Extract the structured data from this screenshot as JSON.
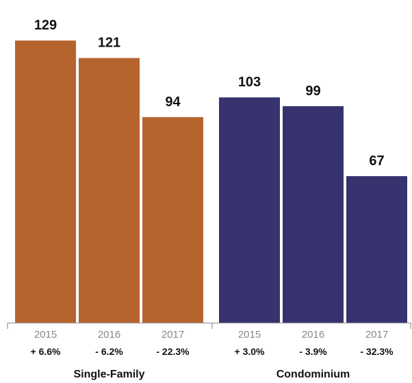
{
  "chart_data": {
    "type": "bar",
    "title": "",
    "xlabel": "",
    "ylabel": "",
    "ylim": [
      0,
      135
    ],
    "groups": [
      {
        "name": "Single-Family",
        "color": "#B5642E",
        "bars": [
          {
            "year": "2015",
            "value": 129,
            "change": "+ 6.6%"
          },
          {
            "year": "2016",
            "value": 121,
            "change": "- 6.2%"
          },
          {
            "year": "2017",
            "value": 94,
            "change": "- 22.3%"
          }
        ]
      },
      {
        "name": "Condominium",
        "color": "#36336F",
        "bars": [
          {
            "year": "2015",
            "value": 103,
            "change": "+ 3.0%"
          },
          {
            "year": "2016",
            "value": 99,
            "change": "- 3.9%"
          },
          {
            "year": "2017",
            "value": 67,
            "change": "- 32.3%"
          }
        ]
      }
    ],
    "grid": false,
    "legend": "none"
  }
}
